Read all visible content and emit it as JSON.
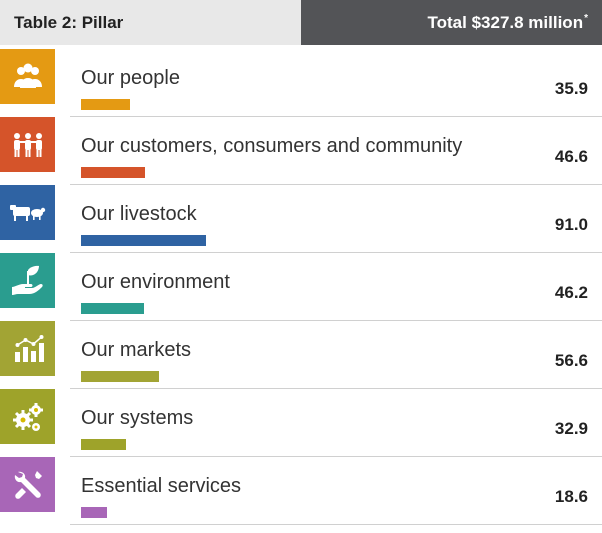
{
  "header": {
    "title": "Table 2: Pillar",
    "total_label": "Total $327.8 million",
    "total_mark": "*"
  },
  "chart_data": {
    "type": "bar",
    "categories": [
      "Our people",
      "Our customers, consumers and community",
      "Our livestock",
      "Our environment",
      "Our markets",
      "Our systems",
      "Essential services"
    ],
    "values": [
      35.9,
      46.6,
      91.0,
      46.2,
      56.6,
      32.9,
      18.6
    ],
    "value_labels": [
      "35.9",
      "46.6",
      "91.0",
      "46.2",
      "56.6",
      "32.9",
      "18.6"
    ],
    "xlim": [
      0,
      91.0
    ],
    "colors": [
      "#e49a13",
      "#d5542a",
      "#2f63a3",
      "#2a9d8f",
      "#a2a434",
      "#9ea32a",
      "#a866b7"
    ],
    "icons": [
      "people-icon",
      "community-icon",
      "livestock-icon",
      "environment-icon",
      "markets-icon",
      "systems-icon",
      "tools-icon"
    ],
    "grid": false
  }
}
